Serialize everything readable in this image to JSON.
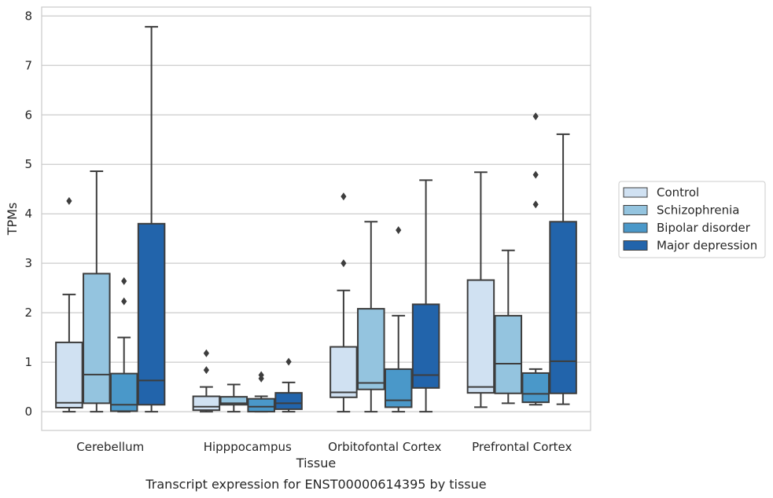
{
  "chart_data": {
    "type": "boxplot",
    "title": "",
    "caption": "Transcript expression for ENST00000614395 by tissue",
    "xlabel": "Tissue",
    "ylabel": "TPMs",
    "ylim": [
      -0.38,
      8.18
    ],
    "yticks": [
      0,
      1,
      2,
      3,
      4,
      5,
      6,
      7,
      8
    ],
    "grid": "horizontal",
    "legend_position": "right",
    "categories": [
      "Cerebellum",
      "Hipppocampus",
      "Orbitofontal Cortex",
      "Prefrontal Cortex"
    ],
    "series": [
      {
        "name": "Control",
        "color": "#d0e1f2",
        "boxes": [
          {
            "whislo": 0.0,
            "q1": 0.08,
            "med": 0.18,
            "q3": 1.4,
            "whishi": 2.37,
            "fliers": [
              4.26
            ]
          },
          {
            "whislo": 0.0,
            "q1": 0.03,
            "med": 0.1,
            "q3": 0.31,
            "whishi": 0.5,
            "fliers": [
              0.84,
              1.18
            ]
          },
          {
            "whislo": 0.0,
            "q1": 0.29,
            "med": 0.39,
            "q3": 1.31,
            "whishi": 2.45,
            "fliers": [
              3.0,
              4.35
            ]
          },
          {
            "whislo": 0.09,
            "q1": 0.38,
            "med": 0.5,
            "q3": 2.66,
            "whishi": 4.84,
            "fliers": []
          }
        ]
      },
      {
        "name": "Schizophrenia",
        "color": "#94c4df",
        "boxes": [
          {
            "whislo": 0.0,
            "q1": 0.17,
            "med": 0.75,
            "q3": 2.79,
            "whishi": 4.86,
            "fliers": []
          },
          {
            "whislo": 0.0,
            "q1": 0.14,
            "med": 0.17,
            "q3": 0.3,
            "whishi": 0.55,
            "fliers": []
          },
          {
            "whislo": 0.0,
            "q1": 0.45,
            "med": 0.58,
            "q3": 2.08,
            "whishi": 3.84,
            "fliers": []
          },
          {
            "whislo": 0.17,
            "q1": 0.37,
            "med": 0.97,
            "q3": 1.94,
            "whishi": 3.26,
            "fliers": []
          }
        ]
      },
      {
        "name": "Bipolar disorder",
        "color": "#4a98c9",
        "boxes": [
          {
            "whislo": 0.0,
            "q1": 0.01,
            "med": 0.14,
            "q3": 0.77,
            "whishi": 1.5,
            "fliers": [
              2.23,
              2.64
            ]
          },
          {
            "whislo": 0.0,
            "q1": 0.0,
            "med": 0.1,
            "q3": 0.26,
            "whishi": 0.31,
            "fliers": [
              0.67,
              0.74
            ]
          },
          {
            "whislo": 0.0,
            "q1": 0.09,
            "med": 0.23,
            "q3": 0.86,
            "whishi": 1.94,
            "fliers": [
              3.67
            ]
          },
          {
            "whislo": 0.14,
            "q1": 0.19,
            "med": 0.36,
            "q3": 0.78,
            "whishi": 0.86,
            "fliers": [
              4.19,
              4.79,
              5.97
            ]
          }
        ]
      },
      {
        "name": "Major depression",
        "color": "#2264ab",
        "boxes": [
          {
            "whislo": 0.0,
            "q1": 0.14,
            "med": 0.63,
            "q3": 3.8,
            "whishi": 7.78,
            "fliers": []
          },
          {
            "whislo": 0.0,
            "q1": 0.05,
            "med": 0.17,
            "q3": 0.38,
            "whishi": 0.59,
            "fliers": [
              1.01
            ]
          },
          {
            "whislo": 0.0,
            "q1": 0.48,
            "med": 0.74,
            "q3": 2.17,
            "whishi": 4.68,
            "fliers": []
          },
          {
            "whislo": 0.15,
            "q1": 0.37,
            "med": 1.02,
            "q3": 3.84,
            "whishi": 5.61,
            "fliers": []
          }
        ]
      }
    ]
  }
}
